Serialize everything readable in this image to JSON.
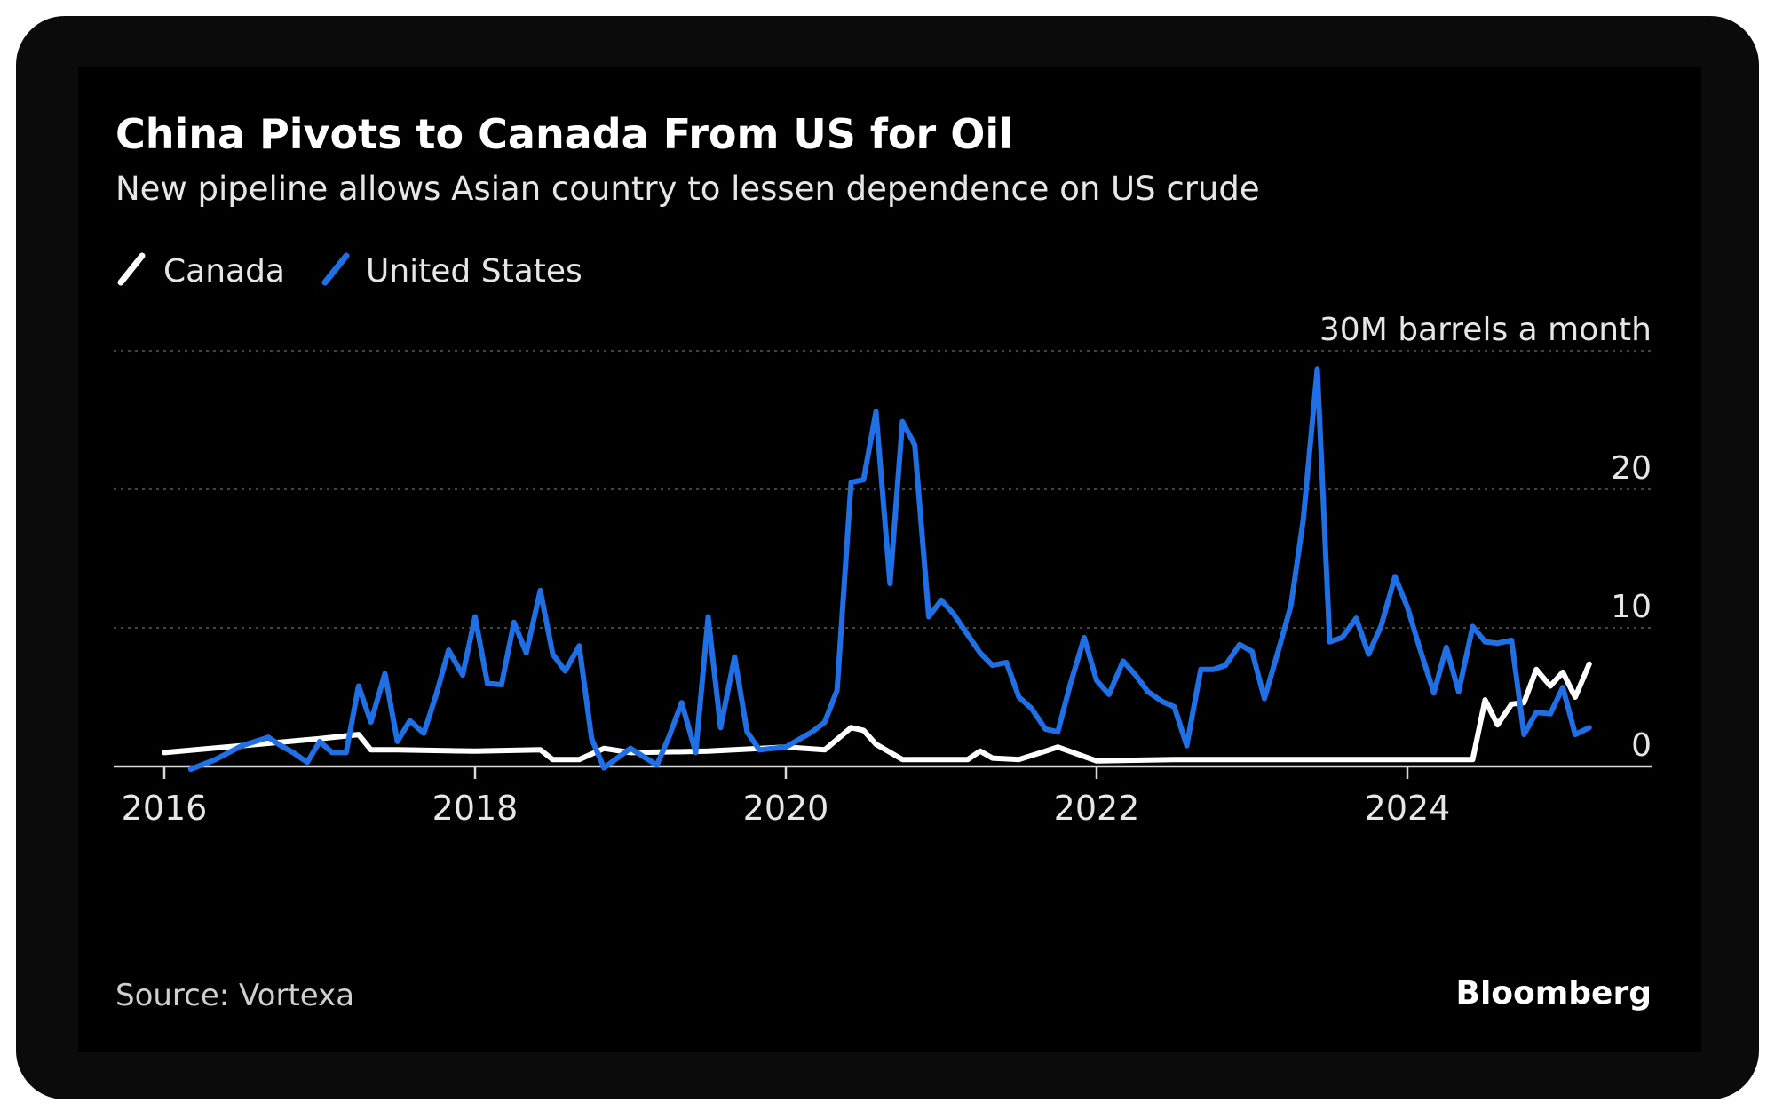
{
  "chart_data": {
    "type": "line",
    "title": "China Pivots to Canada From US for Oil",
    "subtitle": "New pipeline allows Asian country to lessen dependence on US crude",
    "unit_label": "30M barrels a month",
    "source": "Source: Vortexa",
    "brand": "Bloomberg",
    "legend_position": "top-left",
    "grid": true,
    "ylim": [
      0,
      30
    ],
    "y_ticks": [
      {
        "value": 0,
        "label": "0"
      },
      {
        "value": 10,
        "label": "10"
      },
      {
        "value": 20,
        "label": "20"
      },
      {
        "value": 30,
        "label": "30M barrels a month"
      }
    ],
    "x_ticks": [
      {
        "value": 2016,
        "label": "2016"
      },
      {
        "value": 2018,
        "label": "2018"
      },
      {
        "value": 2020,
        "label": "2020"
      },
      {
        "value": 2022,
        "label": "2022"
      },
      {
        "value": 2024,
        "label": "2024"
      }
    ],
    "series": [
      {
        "name": "Canada",
        "color": "#ffffff",
        "x": [
          2016.0,
          2016.5,
          2017.0,
          2017.25,
          2017.33,
          2017.5,
          2018.0,
          2018.42,
          2018.5,
          2018.67,
          2018.83,
          2019.0,
          2019.5,
          2020.0,
          2020.25,
          2020.42,
          2020.5,
          2020.58,
          2020.75,
          2021.0,
          2021.17,
          2021.25,
          2021.33,
          2021.5,
          2021.67,
          2021.75,
          2022.0,
          2022.5,
          2023.0,
          2023.5,
          2024.0,
          2024.42,
          2024.5,
          2024.58,
          2024.67,
          2024.75,
          2024.83,
          2024.92,
          2025.0,
          2025.08,
          2025.17
        ],
        "values": [
          1.0,
          1.5,
          2.0,
          2.3,
          1.2,
          1.2,
          1.1,
          1.2,
          0.5,
          0.5,
          1.3,
          1.0,
          1.1,
          1.4,
          1.2,
          2.8,
          2.6,
          1.6,
          0.5,
          0.5,
          0.5,
          1.1,
          0.6,
          0.5,
          1.1,
          1.4,
          0.4,
          0.5,
          0.5,
          0.5,
          0.5,
          0.5,
          4.8,
          3.0,
          4.5,
          4.6,
          7.0,
          5.8,
          6.8,
          5.0,
          7.4
        ]
      },
      {
        "name": "United States",
        "color": "#1f6fe5",
        "x": [
          2016.17,
          2016.33,
          2016.5,
          2016.67,
          2016.75,
          2016.83,
          2016.92,
          2017.0,
          2017.08,
          2017.17,
          2017.25,
          2017.33,
          2017.42,
          2017.5,
          2017.58,
          2017.67,
          2017.75,
          2017.83,
          2017.92,
          2018.0,
          2018.08,
          2018.17,
          2018.25,
          2018.33,
          2018.42,
          2018.5,
          2018.58,
          2018.67,
          2018.75,
          2018.83,
          2019.0,
          2019.17,
          2019.25,
          2019.33,
          2019.42,
          2019.5,
          2019.58,
          2019.67,
          2019.75,
          2019.83,
          2020.0,
          2020.17,
          2020.25,
          2020.33,
          2020.42,
          2020.5,
          2020.58,
          2020.67,
          2020.75,
          2020.83,
          2020.92,
          2021.0,
          2021.08,
          2021.17,
          2021.25,
          2021.33,
          2021.42,
          2021.5,
          2021.58,
          2021.67,
          2021.75,
          2021.83,
          2021.92,
          2022.0,
          2022.08,
          2022.17,
          2022.25,
          2022.33,
          2022.42,
          2022.5,
          2022.58,
          2022.67,
          2022.75,
          2022.83,
          2022.92,
          2023.0,
          2023.08,
          2023.17,
          2023.25,
          2023.33,
          2023.42,
          2023.5,
          2023.58,
          2023.67,
          2023.75,
          2023.83,
          2023.92,
          2024.0,
          2024.08,
          2024.17,
          2024.25,
          2024.33,
          2024.42,
          2024.5,
          2024.58,
          2024.67,
          2024.75,
          2024.83,
          2024.92,
          2025.0,
          2025.08,
          2025.17
        ],
        "values": [
          -0.2,
          0.5,
          1.5,
          2.1,
          1.5,
          1.0,
          0.3,
          1.8,
          1.0,
          1.0,
          5.8,
          3.2,
          6.7,
          1.8,
          3.3,
          2.4,
          5.2,
          8.4,
          6.6,
          10.8,
          6.0,
          5.9,
          10.4,
          8.2,
          12.7,
          8.1,
          6.9,
          8.7,
          2.0,
          -0.1,
          1.3,
          0.1,
          2.2,
          4.6,
          1.0,
          10.8,
          2.8,
          7.9,
          2.5,
          1.2,
          1.4,
          2.5,
          3.2,
          5.5,
          20.5,
          20.7,
          25.6,
          13.2,
          24.9,
          23.2,
          10.8,
          12.0,
          11.0,
          9.5,
          8.2,
          7.3,
          7.5,
          5.0,
          4.2,
          2.7,
          2.5,
          5.9,
          9.3,
          6.2,
          5.2,
          7.6,
          6.6,
          5.4,
          4.7,
          4.3,
          1.5,
          7.0,
          7.0,
          7.3,
          8.8,
          8.3,
          4.9,
          8.4,
          11.6,
          17.8,
          28.7,
          9.0,
          9.3,
          10.7,
          8.1,
          10.1,
          13.7,
          11.5,
          8.5,
          5.3,
          8.6,
          5.4,
          10.1,
          9.0,
          8.9,
          9.1,
          2.3,
          3.9,
          3.8,
          5.7,
          2.3,
          2.8
        ]
      }
    ]
  }
}
